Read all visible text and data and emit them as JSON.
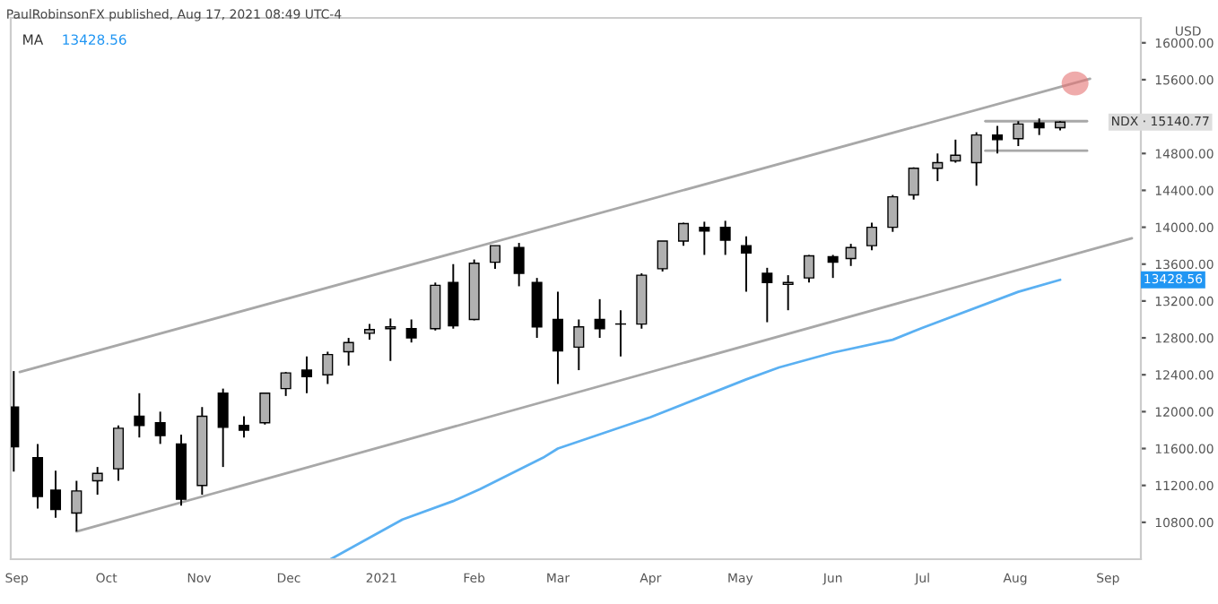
{
  "chart_data": {
    "type": "candlestick",
    "title": "PaulRobinsonFX published, Aug 17, 2021 08:49 UTC-4",
    "x": [
      "2020-08-31",
      "2020-09-08",
      "2020-09-14",
      "2020-09-21",
      "2020-09-28",
      "2020-10-05",
      "2020-10-12",
      "2020-10-19",
      "2020-10-26",
      "2020-11-02",
      "2020-11-09",
      "2020-11-16",
      "2020-11-23",
      "2020-11-30",
      "2020-12-07",
      "2020-12-14",
      "2020-12-21",
      "2020-12-28",
      "2021-01-04",
      "2021-01-11",
      "2021-01-19",
      "2021-01-25",
      "2021-02-01",
      "2021-02-08",
      "2021-02-16",
      "2021-02-22",
      "2021-03-01",
      "2021-03-08",
      "2021-03-15",
      "2021-03-22",
      "2021-03-29",
      "2021-04-05",
      "2021-04-12",
      "2021-04-19",
      "2021-04-26",
      "2021-05-03",
      "2021-05-10",
      "2021-05-17",
      "2021-05-24",
      "2021-06-01",
      "2021-06-07",
      "2021-06-14",
      "2021-06-21",
      "2021-06-28",
      "2021-07-06",
      "2021-07-12",
      "2021-07-19",
      "2021-07-26",
      "2021-08-02",
      "2021-08-09",
      "2021-08-16"
    ],
    "ohlc": [
      [
        12050,
        12440,
        11350,
        11620
      ],
      [
        11500,
        11650,
        10950,
        11080
      ],
      [
        11150,
        11360,
        10850,
        10940
      ],
      [
        10900,
        11250,
        10700,
        11140
      ],
      [
        11250,
        11400,
        11100,
        11330
      ],
      [
        11380,
        11850,
        11250,
        11820
      ],
      [
        11950,
        12200,
        11720,
        11850
      ],
      [
        11880,
        12000,
        11650,
        11740
      ],
      [
        11650,
        11750,
        10980,
        11050
      ],
      [
        11200,
        12050,
        11100,
        11950
      ],
      [
        12200,
        12250,
        11400,
        11830
      ],
      [
        11850,
        11950,
        11720,
        11800
      ],
      [
        11880,
        12200,
        11860,
        12200
      ],
      [
        12250,
        12430,
        12170,
        12420
      ],
      [
        12450,
        12600,
        12200,
        12380
      ],
      [
        12400,
        12650,
        12300,
        12620
      ],
      [
        12650,
        12800,
        12500,
        12750
      ],
      [
        12850,
        12950,
        12780,
        12890
      ],
      [
        12900,
        13010,
        12550,
        12920
      ],
      [
        12900,
        13000,
        12750,
        12800
      ],
      [
        12900,
        13400,
        12880,
        13370
      ],
      [
        13400,
        13600,
        12900,
        12930
      ],
      [
        13000,
        13650,
        12990,
        13610
      ],
      [
        13620,
        13800,
        13550,
        13800
      ],
      [
        13780,
        13830,
        13360,
        13500
      ],
      [
        13400,
        13450,
        12800,
        12920
      ],
      [
        13000,
        13300,
        12300,
        12660
      ],
      [
        12700,
        13000,
        12450,
        12920
      ],
      [
        13000,
        13220,
        12800,
        12900
      ],
      [
        12950,
        13100,
        12600,
        12950
      ],
      [
        12950,
        13500,
        12900,
        13480
      ],
      [
        13550,
        13850,
        13520,
        13850
      ],
      [
        13850,
        14050,
        13800,
        14040
      ],
      [
        14000,
        14060,
        13700,
        13960
      ],
      [
        14000,
        14070,
        13700,
        13860
      ],
      [
        13800,
        13900,
        13300,
        13720
      ],
      [
        13500,
        13560,
        12970,
        13400
      ],
      [
        13380,
        13480,
        13100,
        13400
      ],
      [
        13450,
        13700,
        13400,
        13690
      ],
      [
        13680,
        13700,
        13450,
        13620
      ],
      [
        13660,
        13820,
        13580,
        13780
      ],
      [
        13800,
        14050,
        13750,
        14000
      ],
      [
        14000,
        14350,
        13950,
        14330
      ],
      [
        14350,
        14650,
        14300,
        14640
      ],
      [
        14640,
        14800,
        14500,
        14700
      ],
      [
        14720,
        14950,
        14700,
        14780
      ],
      [
        14700,
        15030,
        14450,
        15000
      ],
      [
        15000,
        15100,
        14800,
        14950
      ],
      [
        14960,
        15150,
        14880,
        15120
      ],
      [
        15130,
        15180,
        15000,
        15080
      ],
      [
        15080,
        15150,
        15050,
        15140
      ]
    ],
    "colors": [
      "#000000",
      "#000000",
      "#000000",
      "#b0b0b0",
      "#b0b0b0",
      "#b0b0b0",
      "#000000",
      "#000000",
      "#000000",
      "#b0b0b0",
      "#000000",
      "#000000",
      "#b0b0b0",
      "#b0b0b0",
      "#000000",
      "#b0b0b0",
      "#b0b0b0",
      "#b0b0b0",
      "#b0b0b0",
      "#000000",
      "#b0b0b0",
      "#000000",
      "#b0b0b0",
      "#b0b0b0",
      "#000000",
      "#000000",
      "#000000",
      "#b0b0b0",
      "#000000",
      "#b0b0b0",
      "#b0b0b0",
      "#b0b0b0",
      "#b0b0b0",
      "#000000",
      "#000000",
      "#000000",
      "#000000",
      "#b0b0b0",
      "#b0b0b0",
      "#000000",
      "#b0b0b0",
      "#b0b0b0",
      "#b0b0b0",
      "#b0b0b0",
      "#b0b0b0",
      "#b0b0b0",
      "#b0b0b0",
      "#000000",
      "#b0b0b0",
      "#000000",
      "#b0b0b0"
    ],
    "series": [
      {
        "type": "line",
        "name": "MA",
        "color": "#5ab0f2",
        "x": [
          "2020-12-15",
          "2021-01-08",
          "2021-01-25",
          "2021-02-03",
          "2021-02-24",
          "2021-03-01",
          "2021-04-01",
          "2021-05-03",
          "2021-05-14",
          "2021-06-01",
          "2021-06-21",
          "2021-07-01",
          "2021-08-02",
          "2021-08-16"
        ],
        "values": [
          10400,
          10830,
          11030,
          11160,
          11500,
          11600,
          11940,
          12350,
          12480,
          12640,
          12780,
          12910,
          13300,
          13430
        ]
      },
      {
        "type": "line",
        "color": "#a8a8a8",
        "x": [
          "2020-09-02",
          "2021-08-26"
        ],
        "values": [
          12430,
          15610
        ]
      },
      {
        "type": "line",
        "color": "#a8a8a8",
        "x": [
          "2020-09-21",
          "2021-09-09"
        ],
        "values": [
          10700,
          13880
        ]
      },
      {
        "type": "line",
        "color": "#a8a8a8",
        "x": [
          "2021-07-22",
          "2021-08-25"
        ],
        "values": [
          15150,
          15150
        ]
      },
      {
        "type": "line",
        "color": "#a8a8a8",
        "x": [
          "2021-07-22",
          "2021-08-25"
        ],
        "values": [
          14830,
          14830
        ]
      }
    ],
    "annotations": [
      "13428.56",
      "USD",
      "NDX · 15140.77",
      "13428.56"
    ],
    "xlim": [
      "2020-08-30",
      "2021-09-12"
    ],
    "xticks": [
      {
        "value": "2020-09-01",
        "label": "Sep"
      },
      {
        "value": "2020-10-01",
        "label": "Oct"
      },
      {
        "value": "2020-11-01",
        "label": "Nov"
      },
      {
        "value": "2020-12-01",
        "label": "Dec"
      },
      {
        "value": "2021-01-01",
        "label": "2021"
      },
      {
        "value": "2021-02-01",
        "label": "Feb"
      },
      {
        "value": "2021-03-01",
        "label": "Mar"
      },
      {
        "value": "2021-04-01",
        "label": "Apr"
      },
      {
        "value": "2021-05-01",
        "label": "May"
      },
      {
        "value": "2021-06-01",
        "label": "Jun"
      },
      {
        "value": "2021-07-01",
        "label": "Jul"
      },
      {
        "value": "2021-08-01",
        "label": "Aug"
      },
      {
        "value": "2021-09-01",
        "label": "Sep"
      }
    ],
    "ylim": [
      10400,
      16270
    ],
    "yticks": [
      {
        "value": 10800,
        "label": "10800.00"
      },
      {
        "value": 11200,
        "label": "11200.00"
      },
      {
        "value": 11600,
        "label": "11600.00"
      },
      {
        "value": 12000,
        "label": "12000.00"
      },
      {
        "value": 12400,
        "label": "12400.00"
      },
      {
        "value": 12800,
        "label": "12800.00"
      },
      {
        "value": 13200,
        "label": "13200.00"
      },
      {
        "value": 13600,
        "label": "13600.00"
      },
      {
        "value": 14000,
        "label": "14000.00"
      },
      {
        "value": 14400,
        "label": "14400.00"
      },
      {
        "value": 14800,
        "label": "14800.00"
      },
      {
        "value": 15200,
        "label": null
      },
      {
        "value": 15600,
        "label": "15600.00"
      },
      {
        "value": 16000,
        "label": "16000.00"
      }
    ],
    "grid": false,
    "legend": false
  }
}
